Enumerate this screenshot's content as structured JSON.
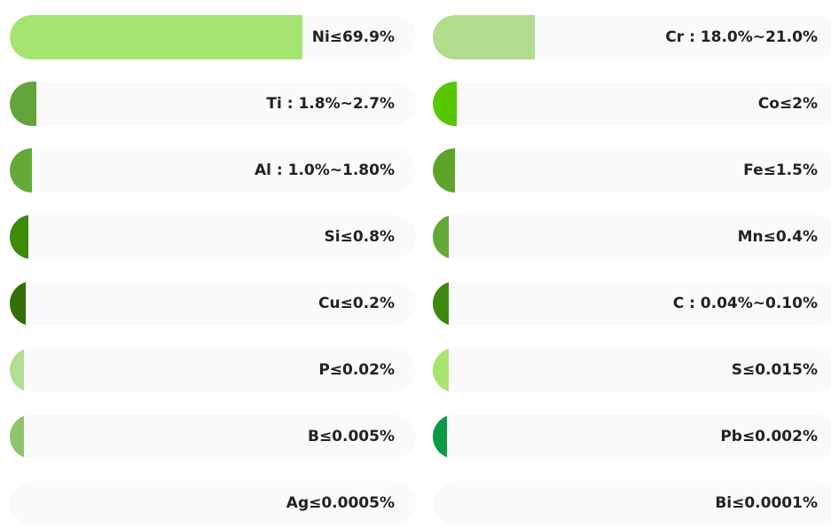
{
  "chart_data": {
    "type": "bar",
    "orientation": "horizontal",
    "columns": 2,
    "xlim": [
      0,
      100
    ],
    "units": "%",
    "items": [
      {
        "label": "Ni≤69.9%",
        "value": 72,
        "color": "#a3e56f"
      },
      {
        "label": "Cr : 18.0%~21.0%",
        "value": 25,
        "color": "#b1dc8d"
      },
      {
        "label": "Ti : 1.8%~2.7%",
        "value": 6.5,
        "color": "#63a53a"
      },
      {
        "label": "Co≤2%",
        "value": 6,
        "color": "#57c700"
      },
      {
        "label": "Al : 1.0%~1.80%",
        "value": 5.5,
        "color": "#66a83a"
      },
      {
        "label": "Fe≤1.5%",
        "value": 5.5,
        "color": "#5da52a"
      },
      {
        "label": "Si≤0.8%",
        "value": 4.5,
        "color": "#3e8a0b"
      },
      {
        "label": "Mn≤0.4%",
        "value": 4,
        "color": "#65a83a"
      },
      {
        "label": "Cu≤0.2%",
        "value": 4,
        "color": "#336e07"
      },
      {
        "label": "C : 0.04%~0.10%",
        "value": 4,
        "color": "#3f880e"
      },
      {
        "label": "P≤0.02%",
        "value": 3.5,
        "color": "#b3dd90"
      },
      {
        "label": "S≤0.015%",
        "value": 4,
        "color": "#a7e56f"
      },
      {
        "label": "B≤0.005%",
        "value": 3.5,
        "color": "#8fc56a"
      },
      {
        "label": "Pb≤0.002%",
        "value": 3.5,
        "color": "#0b9947"
      },
      {
        "label": "Ag≤0.0005%",
        "value": 0,
        "color": "#cccccc"
      },
      {
        "label": "Bi≤0.0001%",
        "value": 0,
        "color": "#cccccc"
      }
    ]
  }
}
